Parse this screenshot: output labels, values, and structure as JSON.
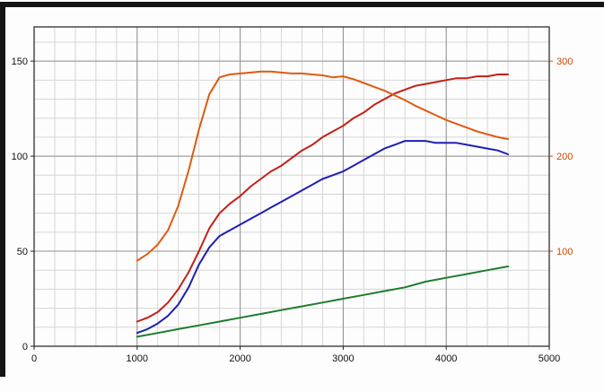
{
  "frame": {
    "border_color": "#151515",
    "background": "#fdfdfd"
  },
  "chart_data": {
    "type": "line",
    "title": "",
    "xlabel": "",
    "ylabel": "",
    "x_range": [
      0,
      5000
    ],
    "x_ticks": [
      "0",
      "1000",
      "2000",
      "3000",
      "4000",
      "5000"
    ],
    "x_tick_values": [
      0,
      1000,
      2000,
      3000,
      4000,
      5000
    ],
    "left_axis": {
      "range": [
        0,
        168
      ],
      "ticks": [
        "0",
        "50",
        "100",
        "150"
      ],
      "tick_values": [
        0,
        50,
        100,
        150
      ],
      "color": "#111111"
    },
    "right_axis": {
      "range": [
        0,
        336
      ],
      "ticks": [
        "100",
        "200",
        "300"
      ],
      "tick_values": [
        100,
        200,
        300
      ],
      "color": "#cc4a00"
    },
    "grid": {
      "x_minor": 200,
      "x_major": 1000,
      "y_minor": 10,
      "y_major": 50,
      "minor_color": "#d6d6d6",
      "major_color": "#8f8f8f",
      "border_color": "#3c3c3c"
    },
    "legend": null,
    "series": [
      {
        "name": "curve-green",
        "color": "#1e7d2c",
        "axis": "left",
        "width": 2,
        "points": [
          [
            1000,
            5
          ],
          [
            1200,
            7
          ],
          [
            1400,
            9
          ],
          [
            1600,
            11
          ],
          [
            1800,
            13
          ],
          [
            2000,
            15
          ],
          [
            2200,
            17
          ],
          [
            2400,
            19
          ],
          [
            2600,
            21
          ],
          [
            2800,
            23
          ],
          [
            3000,
            25
          ],
          [
            3200,
            27
          ],
          [
            3400,
            29
          ],
          [
            3600,
            31
          ],
          [
            3800,
            34
          ],
          [
            4000,
            36
          ],
          [
            4200,
            38
          ],
          [
            4400,
            40
          ],
          [
            4600,
            42
          ]
        ]
      },
      {
        "name": "curve-blue",
        "color": "#1f1fb4",
        "axis": "left",
        "width": 2,
        "points": [
          [
            1000,
            7
          ],
          [
            1100,
            9
          ],
          [
            1200,
            12
          ],
          [
            1300,
            16
          ],
          [
            1400,
            22
          ],
          [
            1500,
            31
          ],
          [
            1600,
            43
          ],
          [
            1700,
            52
          ],
          [
            1800,
            58
          ],
          [
            1900,
            61
          ],
          [
            2000,
            64
          ],
          [
            2100,
            67
          ],
          [
            2200,
            70
          ],
          [
            2300,
            73
          ],
          [
            2400,
            76
          ],
          [
            2500,
            79
          ],
          [
            2600,
            82
          ],
          [
            2700,
            85
          ],
          [
            2800,
            88
          ],
          [
            2900,
            90
          ],
          [
            3000,
            92
          ],
          [
            3100,
            95
          ],
          [
            3200,
            98
          ],
          [
            3300,
            101
          ],
          [
            3400,
            104
          ],
          [
            3500,
            106
          ],
          [
            3600,
            108
          ],
          [
            3700,
            108
          ],
          [
            3800,
            108
          ],
          [
            3900,
            107
          ],
          [
            4000,
            107
          ],
          [
            4100,
            107
          ],
          [
            4200,
            106
          ],
          [
            4300,
            105
          ],
          [
            4400,
            104
          ],
          [
            4500,
            103
          ],
          [
            4600,
            101
          ]
        ]
      },
      {
        "name": "curve-red",
        "color": "#c22016",
        "axis": "left",
        "width": 2,
        "points": [
          [
            1000,
            13
          ],
          [
            1100,
            15
          ],
          [
            1200,
            18
          ],
          [
            1300,
            23
          ],
          [
            1400,
            30
          ],
          [
            1500,
            39
          ],
          [
            1600,
            50
          ],
          [
            1700,
            62
          ],
          [
            1800,
            70
          ],
          [
            1900,
            75
          ],
          [
            2000,
            79
          ],
          [
            2100,
            84
          ],
          [
            2200,
            88
          ],
          [
            2300,
            92
          ],
          [
            2400,
            95
          ],
          [
            2500,
            99
          ],
          [
            2600,
            103
          ],
          [
            2700,
            106
          ],
          [
            2800,
            110
          ],
          [
            2900,
            113
          ],
          [
            3000,
            116
          ],
          [
            3100,
            120
          ],
          [
            3200,
            123
          ],
          [
            3300,
            127
          ],
          [
            3400,
            130
          ],
          [
            3500,
            133
          ],
          [
            3600,
            135
          ],
          [
            3700,
            137
          ],
          [
            3800,
            138
          ],
          [
            3900,
            139
          ],
          [
            4000,
            140
          ],
          [
            4100,
            141
          ],
          [
            4200,
            141
          ],
          [
            4300,
            142
          ],
          [
            4400,
            142
          ],
          [
            4500,
            143
          ],
          [
            4600,
            143
          ]
        ]
      },
      {
        "name": "curve-orange",
        "color": "#e05a10",
        "axis": "right",
        "width": 2,
        "points": [
          [
            1000,
            90
          ],
          [
            1100,
            97
          ],
          [
            1200,
            107
          ],
          [
            1300,
            122
          ],
          [
            1400,
            148
          ],
          [
            1500,
            185
          ],
          [
            1600,
            228
          ],
          [
            1700,
            265
          ],
          [
            1800,
            283
          ],
          [
            1900,
            286
          ],
          [
            2000,
            287
          ],
          [
            2100,
            288
          ],
          [
            2200,
            289
          ],
          [
            2300,
            289
          ],
          [
            2400,
            288
          ],
          [
            2500,
            287
          ],
          [
            2600,
            287
          ],
          [
            2700,
            286
          ],
          [
            2800,
            285
          ],
          [
            2900,
            283
          ],
          [
            3000,
            284
          ],
          [
            3100,
            281
          ],
          [
            3200,
            277
          ],
          [
            3300,
            273
          ],
          [
            3400,
            269
          ],
          [
            3500,
            264
          ],
          [
            3600,
            259
          ],
          [
            3700,
            253
          ],
          [
            3800,
            248
          ],
          [
            3900,
            243
          ],
          [
            4000,
            238
          ],
          [
            4100,
            234
          ],
          [
            4200,
            230
          ],
          [
            4300,
            226
          ],
          [
            4400,
            223
          ],
          [
            4500,
            220
          ],
          [
            4600,
            218
          ]
        ]
      }
    ]
  }
}
